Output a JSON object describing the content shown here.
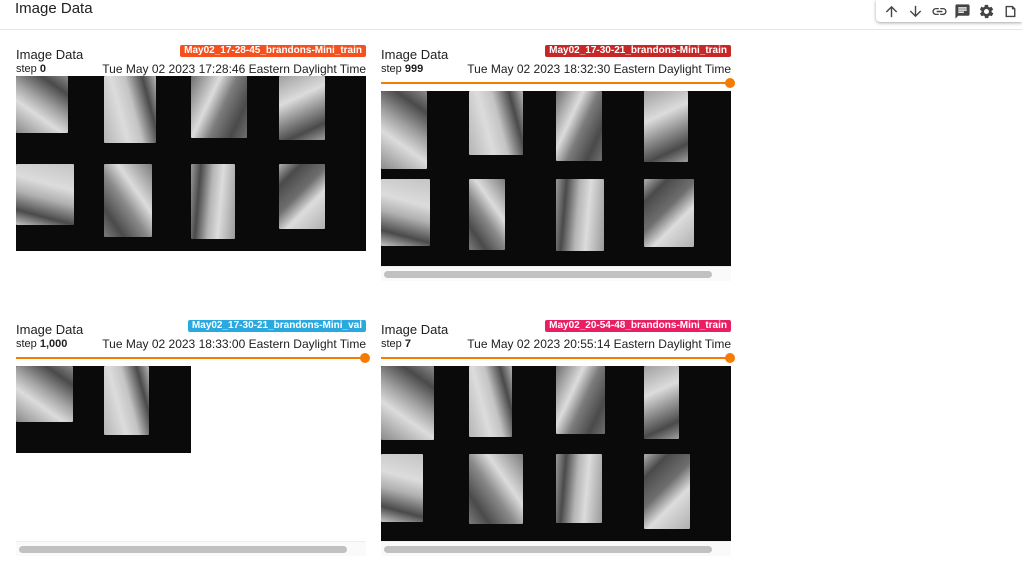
{
  "header": {
    "title": "Image Data"
  },
  "toolbar": [
    {
      "name": "arrow-up-icon",
      "glyph": "up"
    },
    {
      "name": "arrow-down-icon",
      "glyph": "down"
    },
    {
      "name": "link-icon",
      "glyph": "link"
    },
    {
      "name": "comment-icon",
      "glyph": "comment"
    },
    {
      "name": "gear-icon",
      "glyph": "gear"
    },
    {
      "name": "more-icon",
      "glyph": "more"
    }
  ],
  "cards": [
    {
      "title": "Image Data",
      "run": "May02_17-28-45_brandons-Mini_train",
      "run_color": "#f4511e",
      "step_label": "step",
      "step": "0",
      "timestamp": "Tue May 02 2023 17:28:46 Eastern Daylight Time",
      "show_slider": false,
      "show_scrollbar": false,
      "image_count": 8
    },
    {
      "title": "Image Data",
      "run": "May02_17-30-21_brandons-Mini_train",
      "run_color": "#c62828",
      "step_label": "step",
      "step": "999",
      "timestamp": "Tue May 02 2023 18:32:30 Eastern Daylight Time",
      "show_slider": true,
      "slider_position": 1.0,
      "show_scrollbar": true,
      "image_count": 8
    },
    {
      "title": "Image Data",
      "run": "May02_17-30-21_brandons-Mini_val",
      "run_color": "#29a9e0",
      "step_label": "step",
      "step": "1,000",
      "timestamp": "Tue May 02 2023 18:33:00 Eastern Daylight Time",
      "show_slider": true,
      "slider_position": 1.0,
      "show_scrollbar": true,
      "image_count": 2
    },
    {
      "title": "Image Data",
      "run": "May02_20-54-48_brandons-Mini_train",
      "run_color": "#e91e63",
      "step_label": "step",
      "step": "7",
      "timestamp": "Tue May 02 2023 20:55:14 Eastern Daylight Time",
      "show_slider": true,
      "slider_position": 1.0,
      "show_scrollbar": true,
      "image_count": 8
    }
  ],
  "colors": {
    "slider": "#f57c00",
    "image_bg": "#0a0a0a"
  }
}
